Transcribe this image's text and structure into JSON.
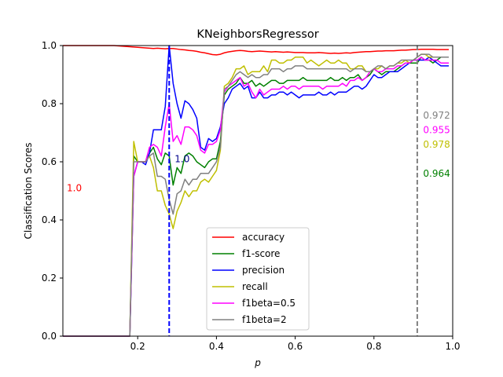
{
  "chart_data": {
    "type": "line",
    "title": "KNeighborsRegressor",
    "xlabel": "p",
    "ylabel": "Classification Scores",
    "xlim": [
      0.01,
      1.0
    ],
    "ylim": [
      0.0,
      1.0
    ],
    "x_ticks": [
      0.2,
      0.4,
      0.6,
      0.8,
      1.0
    ],
    "x_tick_labels": [
      "0.2",
      "0.4",
      "0.6",
      "0.8",
      "1.0"
    ],
    "y_ticks": [
      0.0,
      0.2,
      0.4,
      0.6,
      0.8,
      1.0
    ],
    "y_tick_labels": [
      "0.0",
      "0.2",
      "0.4",
      "0.6",
      "0.8",
      "1.0"
    ],
    "grid": false,
    "legend_position": "bottom-center",
    "x": [
      0.01,
      0.02,
      0.03,
      0.04,
      0.05,
      0.06,
      0.07,
      0.08,
      0.09,
      0.1,
      0.11,
      0.12,
      0.13,
      0.14,
      0.15,
      0.16,
      0.17,
      0.18,
      0.19,
      0.2,
      0.21,
      0.22,
      0.23,
      0.24,
      0.25,
      0.26,
      0.27,
      0.28,
      0.29,
      0.3,
      0.31,
      0.32,
      0.33,
      0.34,
      0.35,
      0.36,
      0.37,
      0.38,
      0.39,
      0.4,
      0.41,
      0.42,
      0.43,
      0.44,
      0.45,
      0.46,
      0.47,
      0.48,
      0.49,
      0.5,
      0.51,
      0.52,
      0.53,
      0.54,
      0.55,
      0.56,
      0.57,
      0.58,
      0.59,
      0.6,
      0.61,
      0.62,
      0.63,
      0.64,
      0.65,
      0.66,
      0.67,
      0.68,
      0.69,
      0.7,
      0.71,
      0.72,
      0.73,
      0.74,
      0.75,
      0.76,
      0.77,
      0.78,
      0.79,
      0.8,
      0.81,
      0.82,
      0.83,
      0.84,
      0.85,
      0.86,
      0.87,
      0.88,
      0.89,
      0.9,
      0.91,
      0.92,
      0.93,
      0.94,
      0.95,
      0.96,
      0.97,
      0.98,
      0.99
    ],
    "series": [
      {
        "name": "accuracy",
        "color": "#ff0000",
        "values": [
          1.0,
          1.0,
          1.0,
          1.0,
          1.0,
          1.0,
          1.0,
          1.0,
          1.0,
          1.0,
          1.0,
          1.0,
          1.0,
          1.0,
          0.999,
          0.998,
          0.997,
          0.996,
          0.995,
          0.994,
          0.993,
          0.992,
          0.991,
          0.99,
          0.991,
          0.99,
          0.989,
          0.99,
          0.99,
          0.988,
          0.986,
          0.985,
          0.983,
          0.982,
          0.98,
          0.977,
          0.975,
          0.972,
          0.969,
          0.968,
          0.97,
          0.975,
          0.978,
          0.98,
          0.982,
          0.983,
          0.982,
          0.98,
          0.979,
          0.98,
          0.981,
          0.98,
          0.979,
          0.978,
          0.979,
          0.978,
          0.977,
          0.978,
          0.977,
          0.976,
          0.976,
          0.976,
          0.975,
          0.975,
          0.975,
          0.976,
          0.975,
          0.974,
          0.973,
          0.974,
          0.973,
          0.974,
          0.975,
          0.974,
          0.976,
          0.977,
          0.978,
          0.979,
          0.979,
          0.98,
          0.981,
          0.981,
          0.982,
          0.982,
          0.982,
          0.983,
          0.984,
          0.984,
          0.985,
          0.986,
          0.986,
          0.987,
          0.987,
          0.987,
          0.987,
          0.986,
          0.986,
          0.986,
          0.986
        ]
      },
      {
        "name": "f1-score",
        "color": "#008000",
        "values": [
          0,
          0,
          0,
          0,
          0,
          0,
          0,
          0,
          0,
          0,
          0,
          0,
          0,
          0,
          0,
          0,
          0,
          0,
          0.62,
          0.6,
          0.6,
          0.6,
          0.63,
          0.65,
          0.61,
          0.59,
          0.63,
          0.62,
          0.52,
          0.58,
          0.56,
          0.62,
          0.63,
          0.62,
          0.6,
          0.59,
          0.58,
          0.6,
          0.61,
          0.61,
          0.67,
          0.83,
          0.85,
          0.86,
          0.87,
          0.89,
          0.87,
          0.87,
          0.88,
          0.86,
          0.87,
          0.86,
          0.87,
          0.88,
          0.88,
          0.87,
          0.87,
          0.88,
          0.88,
          0.88,
          0.88,
          0.89,
          0.88,
          0.88,
          0.88,
          0.88,
          0.88,
          0.88,
          0.89,
          0.88,
          0.88,
          0.89,
          0.88,
          0.89,
          0.89,
          0.9,
          0.88,
          0.89,
          0.9,
          0.92,
          0.91,
          0.9,
          0.91,
          0.91,
          0.91,
          0.92,
          0.93,
          0.94,
          0.94,
          0.94,
          0.94,
          0.96,
          0.95,
          0.95,
          0.94,
          0.95,
          0.96,
          0.96,
          0.96
        ]
      },
      {
        "name": "precision",
        "color": "#0000ff",
        "values": [
          0,
          0,
          0,
          0,
          0,
          0,
          0,
          0,
          0,
          0,
          0,
          0,
          0,
          0,
          0,
          0,
          0,
          0,
          0.55,
          0.6,
          0.6,
          0.59,
          0.63,
          0.71,
          0.71,
          0.71,
          0.79,
          1.0,
          0.87,
          0.8,
          0.75,
          0.81,
          0.8,
          0.78,
          0.75,
          0.65,
          0.64,
          0.68,
          0.67,
          0.68,
          0.72,
          0.8,
          0.82,
          0.85,
          0.86,
          0.87,
          0.85,
          0.86,
          0.82,
          0.82,
          0.84,
          0.82,
          0.82,
          0.83,
          0.83,
          0.84,
          0.84,
          0.83,
          0.84,
          0.83,
          0.82,
          0.83,
          0.83,
          0.83,
          0.83,
          0.84,
          0.83,
          0.83,
          0.84,
          0.83,
          0.84,
          0.84,
          0.84,
          0.85,
          0.86,
          0.86,
          0.85,
          0.86,
          0.88,
          0.9,
          0.89,
          0.89,
          0.9,
          0.91,
          0.91,
          0.91,
          0.92,
          0.93,
          0.94,
          0.95,
          0.95,
          0.95,
          0.95,
          0.96,
          0.95,
          0.94,
          0.93,
          0.93,
          0.93
        ]
      },
      {
        "name": "recall",
        "color": "#bfbf00",
        "values": [
          0,
          0,
          0,
          0,
          0,
          0,
          0,
          0,
          0,
          0,
          0,
          0,
          0,
          0,
          0,
          0,
          0,
          0,
          0.67,
          0.6,
          0.6,
          0.6,
          0.62,
          0.58,
          0.5,
          0.5,
          0.45,
          0.42,
          0.37,
          0.43,
          0.46,
          0.5,
          0.48,
          0.5,
          0.5,
          0.53,
          0.54,
          0.53,
          0.55,
          0.57,
          0.64,
          0.86,
          0.87,
          0.89,
          0.92,
          0.92,
          0.93,
          0.9,
          0.91,
          0.91,
          0.91,
          0.93,
          0.91,
          0.95,
          0.95,
          0.94,
          0.94,
          0.95,
          0.95,
          0.96,
          0.96,
          0.96,
          0.94,
          0.95,
          0.94,
          0.93,
          0.94,
          0.95,
          0.94,
          0.94,
          0.95,
          0.94,
          0.94,
          0.92,
          0.92,
          0.93,
          0.93,
          0.91,
          0.91,
          0.92,
          0.92,
          0.93,
          0.92,
          0.93,
          0.93,
          0.94,
          0.94,
          0.95,
          0.94,
          0.95,
          0.96,
          0.97,
          0.97,
          0.96,
          0.96,
          0.96,
          0.96,
          0.96,
          0.96
        ]
      },
      {
        "name": "f1beta=0.5",
        "color": "#ff00ff",
        "values": [
          0,
          0,
          0,
          0,
          0,
          0,
          0,
          0,
          0,
          0,
          0,
          0,
          0,
          0,
          0,
          0,
          0,
          0,
          0.55,
          0.6,
          0.6,
          0.6,
          0.65,
          0.66,
          0.65,
          0.62,
          0.72,
          0.8,
          0.67,
          0.69,
          0.66,
          0.72,
          0.72,
          0.71,
          0.69,
          0.64,
          0.63,
          0.66,
          0.66,
          0.67,
          0.71,
          0.84,
          0.86,
          0.87,
          0.88,
          0.89,
          0.86,
          0.87,
          0.84,
          0.82,
          0.85,
          0.83,
          0.84,
          0.85,
          0.85,
          0.85,
          0.86,
          0.85,
          0.86,
          0.86,
          0.85,
          0.86,
          0.86,
          0.86,
          0.86,
          0.86,
          0.85,
          0.86,
          0.86,
          0.86,
          0.86,
          0.87,
          0.86,
          0.88,
          0.88,
          0.89,
          0.88,
          0.89,
          0.91,
          0.92,
          0.91,
          0.91,
          0.92,
          0.92,
          0.92,
          0.93,
          0.93,
          0.94,
          0.94,
          0.95,
          0.95,
          0.96,
          0.95,
          0.95,
          0.95,
          0.95,
          0.94,
          0.94,
          0.94
        ]
      },
      {
        "name": "f1beta=2",
        "color": "#808080",
        "values": [
          0,
          0,
          0,
          0,
          0,
          0,
          0,
          0,
          0,
          0,
          0,
          0,
          0,
          0,
          0,
          0,
          0,
          0,
          0.6,
          0.6,
          0.6,
          0.6,
          0.62,
          0.63,
          0.55,
          0.55,
          0.54,
          0.47,
          0.42,
          0.49,
          0.5,
          0.54,
          0.52,
          0.54,
          0.54,
          0.56,
          0.56,
          0.56,
          0.58,
          0.6,
          0.65,
          0.85,
          0.86,
          0.88,
          0.9,
          0.91,
          0.9,
          0.89,
          0.9,
          0.89,
          0.89,
          0.9,
          0.9,
          0.92,
          0.92,
          0.92,
          0.91,
          0.92,
          0.92,
          0.93,
          0.93,
          0.93,
          0.92,
          0.92,
          0.92,
          0.92,
          0.92,
          0.92,
          0.92,
          0.92,
          0.92,
          0.92,
          0.92,
          0.91,
          0.92,
          0.92,
          0.92,
          0.91,
          0.91,
          0.92,
          0.93,
          0.93,
          0.92,
          0.93,
          0.93,
          0.94,
          0.95,
          0.95,
          0.95,
          0.95,
          0.96,
          0.97,
          0.97,
          0.97,
          0.96,
          0.96,
          0.96,
          0.96,
          0.96
        ]
      }
    ],
    "vlines": [
      {
        "x": 0.28,
        "color": "#0000ff",
        "label": "1.0",
        "label_color": "#00008b",
        "label_y": 0.61
      },
      {
        "x": 0.91,
        "color": "#808080",
        "label": "",
        "label_color": "#808080",
        "label_y": 0.0
      }
    ],
    "annotations": [
      {
        "text": "1.0",
        "color": "#ff0000",
        "x": 0.02,
        "y": 0.51
      },
      {
        "text": "0.972",
        "color": "#808080",
        "x": 0.925,
        "y": 0.76
      },
      {
        "text": "0.955",
        "color": "#ff00ff",
        "x": 0.925,
        "y": 0.71
      },
      {
        "text": "0.978",
        "color": "#bfbf00",
        "x": 0.925,
        "y": 0.66
      },
      {
        "text": "0.964",
        "color": "#008000",
        "x": 0.925,
        "y": 0.56
      }
    ]
  }
}
